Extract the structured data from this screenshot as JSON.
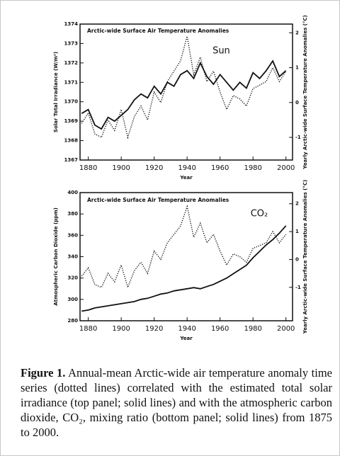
{
  "chart_data": [
    {
      "type": "line",
      "annotation": "Arctic-wide Surface Air Temperature Anomalies",
      "xlabel": "Year",
      "ylabel": "Solar Total Irradiance (W/m²)",
      "y2label": "Yearly Arctic-wide Surface Temperature Anomalies (°C)",
      "x": [
        1876,
        1880,
        1884,
        1888,
        1892,
        1896,
        1900,
        1904,
        1908,
        1912,
        1916,
        1920,
        1924,
        1928,
        1932,
        1936,
        1940,
        1944,
        1948,
        1952,
        1956,
        1960,
        1964,
        1968,
        1972,
        1976,
        1980,
        1984,
        1988,
        1992,
        1996,
        2000
      ],
      "series": [
        {
          "name": "Sun",
          "color": "#111111",
          "style": "solid",
          "values": [
            1369.4,
            1369.6,
            1368.8,
            1368.6,
            1369.2,
            1369.0,
            1369.3,
            1369.6,
            1370.1,
            1370.4,
            1370.2,
            1370.8,
            1370.4,
            1371.0,
            1370.8,
            1371.4,
            1371.6,
            1371.2,
            1372.0,
            1371.3,
            1370.9,
            1371.4,
            1371.0,
            1370.6,
            1371.0,
            1370.7,
            1371.5,
            1371.2,
            1371.6,
            1372.1,
            1371.3,
            1371.6
          ]
        },
        {
          "name": "Arctic-wide Surface Air Temperature Anomalies",
          "color": "#111111",
          "style": "dotted",
          "axis": "y2",
          "values": [
            -0.6,
            -0.3,
            -0.9,
            -1.0,
            -0.5,
            -0.8,
            -0.2,
            -1.0,
            -0.4,
            -0.1,
            -0.5,
            0.3,
            0.0,
            0.6,
            0.9,
            1.2,
            1.9,
            0.8,
            1.3,
            0.6,
            0.9,
            0.3,
            -0.2,
            0.2,
            0.1,
            -0.1,
            0.4,
            0.5,
            0.6,
            1.0,
            0.6,
            0.9
          ]
        }
      ],
      "xlim": [
        1875,
        2004
      ],
      "xticks": [
        1880,
        1900,
        1920,
        1940,
        1960,
        1980,
        2000
      ],
      "ylim": [
        1367,
        1374
      ],
      "yticks": [
        1367,
        1368,
        1369,
        1370,
        1371,
        1372,
        1373,
        1374
      ],
      "y2lim": [
        -1.65,
        2.25
      ],
      "y2ticks": [
        -1,
        0,
        1,
        2
      ]
    },
    {
      "type": "line",
      "xlabel": "Year",
      "ylabel": "Atmospheric Carbon Dioxide (ppm)",
      "y2label": "Yearly Arctic-wide Surface Temperature Anomalies (°C)",
      "x": [
        1876,
        1880,
        1884,
        1888,
        1892,
        1896,
        1900,
        1904,
        1908,
        1912,
        1916,
        1920,
        1924,
        1928,
        1932,
        1936,
        1940,
        1944,
        1948,
        1952,
        1956,
        1960,
        1964,
        1968,
        1972,
        1976,
        1980,
        1984,
        1988,
        1992,
        1996,
        2000
      ],
      "series": [
        {
          "name": "CO₂",
          "color": "#111111",
          "style": "solid",
          "values": [
            289,
            290,
            292,
            293,
            294,
            295,
            296,
            297,
            298,
            300,
            301,
            303,
            305,
            306,
            308,
            309,
            310,
            311,
            310,
            312,
            314,
            317,
            320,
            324,
            328,
            332,
            339,
            345,
            351,
            356,
            362,
            369
          ]
        },
        {
          "name": "Arctic-wide Surface Air Temperature Anomalies",
          "color": "#111111",
          "style": "dotted",
          "axis": "y2",
          "values": [
            -0.6,
            -0.3,
            -0.9,
            -1.0,
            -0.5,
            -0.8,
            -0.2,
            -1.0,
            -0.4,
            -0.1,
            -0.5,
            0.3,
            0.0,
            0.6,
            0.9,
            1.2,
            1.9,
            0.8,
            1.3,
            0.6,
            0.9,
            0.3,
            -0.2,
            0.2,
            0.1,
            -0.1,
            0.4,
            0.5,
            0.6,
            1.0,
            0.6,
            0.9
          ]
        }
      ],
      "xlim": [
        1875,
        2004
      ],
      "xticks": [
        1880,
        1900,
        1920,
        1940,
        1960,
        1980,
        2000
      ],
      "ylim": [
        280,
        400
      ],
      "yticks": [
        280,
        300,
        320,
        340,
        360,
        380,
        400
      ],
      "y2lim": [
        -2.2,
        2.4
      ],
      "y2ticks": [
        -1,
        0,
        1,
        2
      ]
    }
  ],
  "caption": {
    "label": "Figure 1.",
    "text": "Annual-mean Arctic-wide air temperature anomaly time series (dotted lines) correlated with the estimated total solar irradiance (top panel; solid lines) and with the atmospheric carbon dioxide, CO₂, mixing ratio (bottom panel; solid lines) from 1875 to 2000."
  }
}
